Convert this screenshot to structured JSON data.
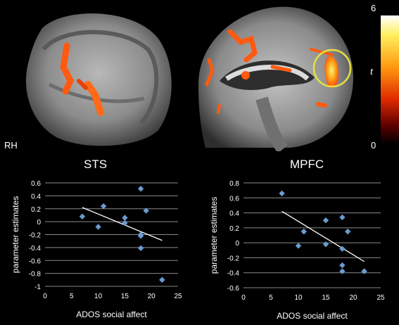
{
  "labels": {
    "rh": "RH",
    "t": "t",
    "colorbar_max": "6",
    "colorbar_min": "0",
    "title_left": "STS",
    "title_right": "MPFC"
  },
  "colors": {
    "background": "#000000",
    "point": "#6b9bd1",
    "trendline": "#ffffff",
    "roi_circle": "#e8e040",
    "activation": "#ff5a10"
  },
  "chart_data": [
    {
      "type": "scatter",
      "title": "STS",
      "xlabel": "ADOS social affect",
      "ylabel": "parameter estimates",
      "xlim": [
        0,
        25
      ],
      "ylim": [
        -1,
        0.6
      ],
      "xticks": [
        0,
        5,
        10,
        15,
        20,
        25
      ],
      "yticks": [
        0.6,
        0.4,
        0.2,
        0,
        -0.2,
        -0.4,
        -0.6,
        -0.8,
        -1
      ],
      "ytick_labels": [
        "0.6",
        "0.4",
        "0.2",
        "0",
        "-0.2",
        "-0.4",
        "-0.6",
        "-0.8",
        "-1"
      ],
      "grid": true,
      "points": [
        {
          "x": 7,
          "y": 0.08
        },
        {
          "x": 10,
          "y": -0.08
        },
        {
          "x": 11,
          "y": 0.24
        },
        {
          "x": 15,
          "y": 0.06
        },
        {
          "x": 15,
          "y": -0.02
        },
        {
          "x": 18,
          "y": 0.51
        },
        {
          "x": 18,
          "y": -0.2
        },
        {
          "x": 18,
          "y": -0.22
        },
        {
          "x": 18,
          "y": -0.41
        },
        {
          "x": 19,
          "y": 0.17
        },
        {
          "x": 22,
          "y": -0.9
        }
      ],
      "trendline": {
        "x": [
          7,
          22
        ],
        "y": [
          0.22,
          -0.29
        ]
      }
    },
    {
      "type": "scatter",
      "title": "MPFC",
      "xlabel": "ADOS social affect",
      "ylabel": "parameter estimates",
      "xlim": [
        0,
        25
      ],
      "ylim": [
        -0.6,
        0.8
      ],
      "xticks": [
        0,
        5,
        10,
        15,
        20,
        25
      ],
      "yticks": [
        0.8,
        0.6,
        0.4,
        0.2,
        0,
        -0.2,
        -0.4,
        -0.6
      ],
      "ytick_labels": [
        "0.8",
        "0.6",
        "0.4",
        "0.2",
        "0",
        "-0.2",
        "-0.4",
        "-0.6"
      ],
      "grid": true,
      "points": [
        {
          "x": 7,
          "y": 0.66
        },
        {
          "x": 10,
          "y": -0.04
        },
        {
          "x": 11,
          "y": 0.15
        },
        {
          "x": 15,
          "y": 0.3
        },
        {
          "x": 15,
          "y": -0.02
        },
        {
          "x": 18,
          "y": 0.34
        },
        {
          "x": 18,
          "y": -0.08
        },
        {
          "x": 18,
          "y": -0.3
        },
        {
          "x": 18,
          "y": -0.38
        },
        {
          "x": 19,
          "y": 0.15
        },
        {
          "x": 22,
          "y": -0.38
        }
      ],
      "trendline": {
        "x": [
          7,
          22
        ],
        "y": [
          0.42,
          -0.25
        ]
      }
    }
  ]
}
